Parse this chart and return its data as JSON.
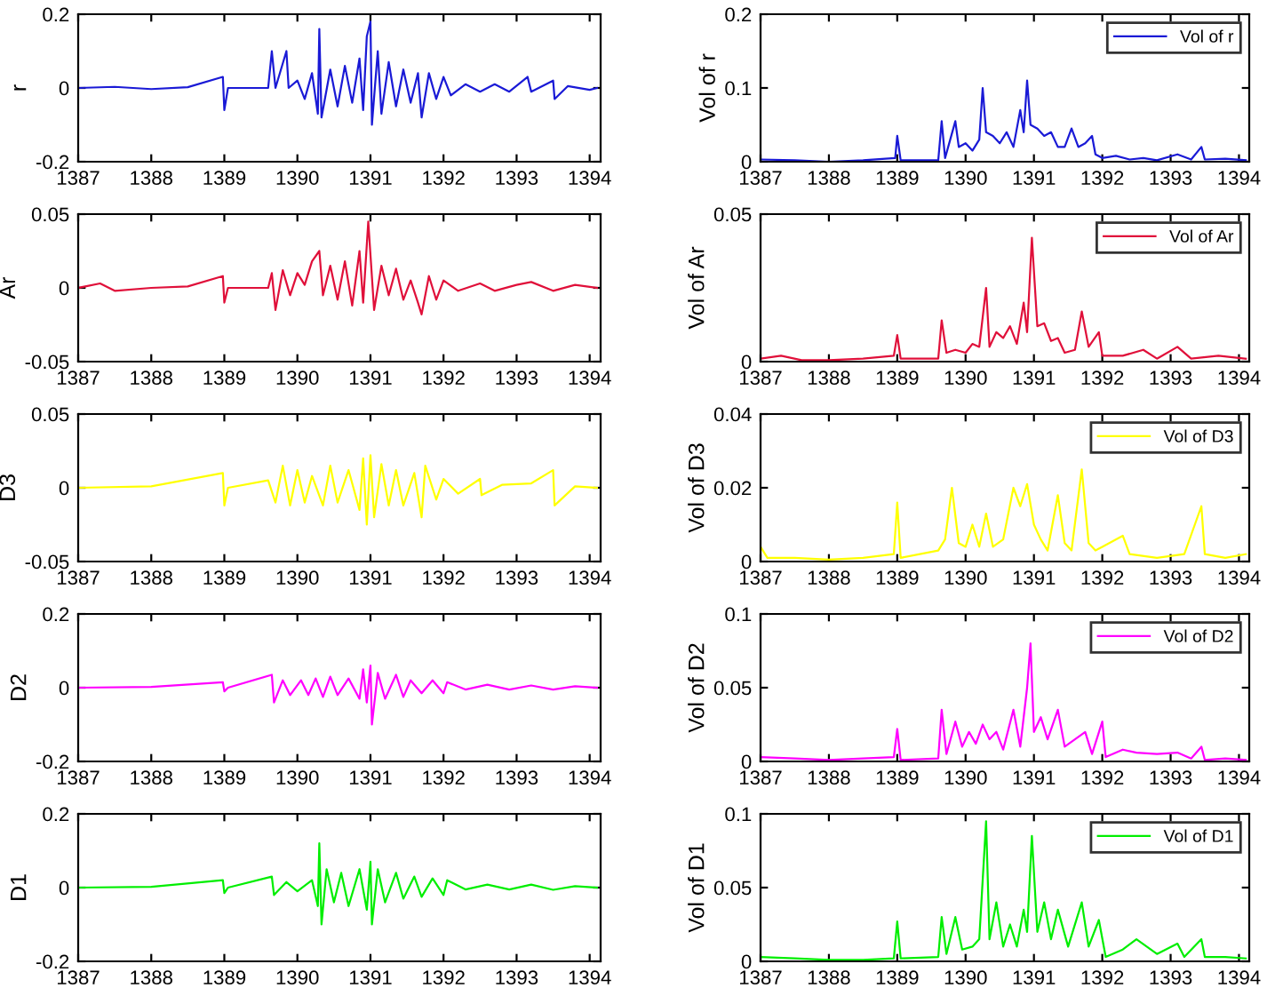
{
  "chart_data": [
    {
      "type": "line",
      "ylabel": "r",
      "xlim": [
        1387,
        1394.15
      ],
      "xticks": [
        1387,
        1388,
        1389,
        1390,
        1391,
        1392,
        1393,
        1394
      ],
      "ylim": [
        -0.2,
        0.2
      ],
      "yticks": [
        -0.2,
        0,
        0.2
      ],
      "x": [
        1387.0,
        1387.5,
        1388.0,
        1388.5,
        1388.98,
        1389.0,
        1389.05,
        1389.6,
        1389.65,
        1389.7,
        1389.85,
        1389.88,
        1390.0,
        1390.1,
        1390.2,
        1390.28,
        1390.3,
        1390.33,
        1390.45,
        1390.55,
        1390.65,
        1390.75,
        1390.85,
        1390.9,
        1390.95,
        1391.0,
        1391.02,
        1391.1,
        1391.15,
        1391.25,
        1391.35,
        1391.45,
        1391.55,
        1391.65,
        1391.7,
        1391.8,
        1391.9,
        1392.0,
        1392.1,
        1392.3,
        1392.5,
        1392.7,
        1392.9,
        1393.15,
        1393.2,
        1393.5,
        1393.52,
        1393.7,
        1394.0,
        1394.1
      ],
      "series": [
        {
          "color": "#1a1ad6",
          "values": [
            0,
            0.003,
            -0.003,
            0.002,
            0.03,
            -0.06,
            0,
            0,
            0.1,
            0,
            0.1,
            0,
            0.02,
            -0.03,
            0.04,
            -0.07,
            0.16,
            -0.08,
            0.05,
            -0.05,
            0.06,
            -0.04,
            0.08,
            -0.06,
            0.14,
            0.18,
            -0.1,
            0.1,
            -0.07,
            0.07,
            -0.05,
            0.05,
            -0.04,
            0.04,
            -0.08,
            0.04,
            -0.03,
            0.03,
            -0.02,
            0.01,
            -0.01,
            0.01,
            -0.01,
            0.03,
            -0.01,
            0.02,
            -0.03,
            0.005,
            -0.005,
            0
          ]
        }
      ]
    },
    {
      "type": "line",
      "ylabel": "Vol of r",
      "xlim": [
        1387,
        1394.15
      ],
      "xticks": [
        1387,
        1388,
        1389,
        1390,
        1391,
        1392,
        1393,
        1394
      ],
      "ylim": [
        0,
        0.2
      ],
      "yticks": [
        0,
        0.1,
        0.2
      ],
      "legend": "top right",
      "x": [
        1387.0,
        1387.5,
        1388.0,
        1388.5,
        1388.97,
        1389.0,
        1389.05,
        1389.6,
        1389.65,
        1389.7,
        1389.85,
        1389.9,
        1390.0,
        1390.1,
        1390.2,
        1390.25,
        1390.3,
        1390.4,
        1390.5,
        1390.6,
        1390.7,
        1390.8,
        1390.85,
        1390.9,
        1390.95,
        1391.05,
        1391.15,
        1391.25,
        1391.35,
        1391.45,
        1391.55,
        1391.65,
        1391.75,
        1391.85,
        1391.9,
        1392.0,
        1392.2,
        1392.4,
        1392.6,
        1392.8,
        1393.1,
        1393.3,
        1393.45,
        1393.5,
        1393.8,
        1394.1
      ],
      "series": [
        {
          "name": "Vol of r",
          "color": "#1a1ad6",
          "values": [
            0.003,
            0.002,
            0,
            0.002,
            0.005,
            0.035,
            0.002,
            0.002,
            0.055,
            0.005,
            0.055,
            0.02,
            0.025,
            0.015,
            0.03,
            0.1,
            0.04,
            0.035,
            0.025,
            0.04,
            0.02,
            0.07,
            0.04,
            0.11,
            0.05,
            0.045,
            0.035,
            0.04,
            0.02,
            0.02,
            0.045,
            0.02,
            0.025,
            0.035,
            0.01,
            0.005,
            0.008,
            0.003,
            0.005,
            0.002,
            0.01,
            0.003,
            0.02,
            0.003,
            0.004,
            0.002
          ]
        }
      ]
    },
    {
      "type": "line",
      "ylabel": "Ar",
      "xlim": [
        1387,
        1394.15
      ],
      "xticks": [
        1387,
        1388,
        1389,
        1390,
        1391,
        1392,
        1393,
        1394
      ],
      "ylim": [
        -0.05,
        0.05
      ],
      "yticks": [
        -0.05,
        0,
        0.05
      ],
      "x": [
        1387.0,
        1387.3,
        1387.5,
        1388.0,
        1388.5,
        1388.98,
        1389.0,
        1389.05,
        1389.6,
        1389.65,
        1389.7,
        1389.8,
        1389.9,
        1390.0,
        1390.1,
        1390.2,
        1390.3,
        1390.35,
        1390.45,
        1390.55,
        1390.65,
        1390.75,
        1390.85,
        1390.9,
        1390.97,
        1391.05,
        1391.15,
        1391.25,
        1391.35,
        1391.45,
        1391.55,
        1391.65,
        1391.7,
        1391.8,
        1391.9,
        1392.0,
        1392.2,
        1392.5,
        1392.7,
        1393.0,
        1393.2,
        1393.5,
        1393.8,
        1394.1
      ],
      "series": [
        {
          "color": "#e0103a",
          "values": [
            0,
            0.003,
            -0.002,
            0,
            0.001,
            0.008,
            -0.01,
            0,
            0,
            0.01,
            -0.015,
            0.012,
            -0.005,
            0.01,
            0.002,
            0.018,
            0.025,
            -0.005,
            0.015,
            -0.008,
            0.018,
            -0.012,
            0.025,
            -0.01,
            0.045,
            -0.015,
            0.015,
            -0.005,
            0.013,
            -0.008,
            0.005,
            -0.01,
            -0.018,
            0.008,
            -0.008,
            0.005,
            -0.002,
            0.003,
            -0.002,
            0.002,
            0.004,
            -0.002,
            0.002,
            0
          ]
        }
      ]
    },
    {
      "type": "line",
      "ylabel": "Vol of Ar",
      "xlim": [
        1387,
        1394.15
      ],
      "xticks": [
        1387,
        1388,
        1389,
        1390,
        1391,
        1392,
        1393,
        1394
      ],
      "ylim": [
        0,
        0.05
      ],
      "yticks": [
        0,
        0.05
      ],
      "legend": "top right",
      "x": [
        1387.0,
        1387.3,
        1387.6,
        1388.0,
        1388.5,
        1388.95,
        1389.0,
        1389.05,
        1389.6,
        1389.65,
        1389.72,
        1389.85,
        1390.0,
        1390.1,
        1390.2,
        1390.3,
        1390.35,
        1390.45,
        1390.55,
        1390.65,
        1390.75,
        1390.85,
        1390.9,
        1390.97,
        1391.05,
        1391.15,
        1391.25,
        1391.35,
        1391.45,
        1391.6,
        1391.7,
        1391.8,
        1391.95,
        1392.0,
        1392.3,
        1392.6,
        1392.8,
        1393.1,
        1393.3,
        1393.7,
        1394.1
      ],
      "series": [
        {
          "name": "Vol of Ar",
          "color": "#e0103a",
          "values": [
            0.001,
            0.002,
            0.0005,
            0.0005,
            0.001,
            0.002,
            0.009,
            0.001,
            0.001,
            0.014,
            0.003,
            0.004,
            0.003,
            0.006,
            0.005,
            0.025,
            0.005,
            0.01,
            0.008,
            0.012,
            0.006,
            0.02,
            0.01,
            0.042,
            0.012,
            0.013,
            0.007,
            0.008,
            0.003,
            0.004,
            0.017,
            0.005,
            0.01,
            0.002,
            0.002,
            0.004,
            0.001,
            0.005,
            0.001,
            0.002,
            0.001
          ]
        }
      ]
    },
    {
      "type": "line",
      "ylabel": "D3",
      "xlim": [
        1387,
        1394.15
      ],
      "xticks": [
        1387,
        1388,
        1389,
        1390,
        1391,
        1392,
        1393,
        1394
      ],
      "ylim": [
        -0.05,
        0.05
      ],
      "yticks": [
        -0.05,
        0,
        0.05
      ],
      "x": [
        1387.0,
        1388.0,
        1388.98,
        1389.0,
        1389.05,
        1389.6,
        1389.7,
        1389.8,
        1389.9,
        1390.0,
        1390.1,
        1390.2,
        1390.35,
        1390.45,
        1390.55,
        1390.7,
        1390.85,
        1390.9,
        1390.95,
        1391.0,
        1391.05,
        1391.15,
        1391.25,
        1391.35,
        1391.45,
        1391.6,
        1391.7,
        1391.75,
        1391.9,
        1392.0,
        1392.2,
        1392.5,
        1392.52,
        1392.8,
        1393.2,
        1393.5,
        1393.52,
        1393.8,
        1394.1
      ],
      "series": [
        {
          "color": "#ffff00",
          "values": [
            0,
            0.001,
            0.01,
            -0.012,
            0,
            0.005,
            -0.01,
            0.015,
            -0.012,
            0.012,
            -0.01,
            0.008,
            -0.012,
            0.015,
            -0.01,
            0.012,
            -0.015,
            0.02,
            -0.025,
            0.022,
            -0.02,
            0.016,
            -0.012,
            0.012,
            -0.012,
            0.01,
            -0.02,
            0.015,
            -0.008,
            0.006,
            -0.004,
            0.006,
            -0.005,
            0.002,
            0.003,
            0.012,
            -0.012,
            0.001,
            0
          ]
        }
      ]
    },
    {
      "type": "line",
      "ylabel": "Vol of D3",
      "xlim": [
        1387,
        1394.15
      ],
      "xticks": [
        1387,
        1388,
        1389,
        1390,
        1391,
        1392,
        1393,
        1394
      ],
      "ylim": [
        0,
        0.04
      ],
      "yticks": [
        0,
        0.02,
        0.04
      ],
      "legend": "top right",
      "x": [
        1387.0,
        1387.1,
        1387.5,
        1388.0,
        1388.5,
        1388.95,
        1389.0,
        1389.05,
        1389.6,
        1389.7,
        1389.8,
        1389.9,
        1390.0,
        1390.1,
        1390.2,
        1390.3,
        1390.4,
        1390.55,
        1390.7,
        1390.8,
        1390.9,
        1391.0,
        1391.1,
        1391.2,
        1391.35,
        1391.45,
        1391.55,
        1391.7,
        1391.8,
        1391.9,
        1392.0,
        1392.3,
        1392.4,
        1392.8,
        1393.2,
        1393.45,
        1393.5,
        1393.8,
        1394.1
      ],
      "series": [
        {
          "name": "Vol of D3",
          "color": "#ffff00",
          "values": [
            0.004,
            0.001,
            0.001,
            0.0005,
            0.001,
            0.002,
            0.016,
            0.001,
            0.003,
            0.006,
            0.02,
            0.005,
            0.004,
            0.01,
            0.004,
            0.013,
            0.004,
            0.006,
            0.02,
            0.015,
            0.021,
            0.01,
            0.006,
            0.003,
            0.018,
            0.005,
            0.003,
            0.025,
            0.005,
            0.003,
            0.004,
            0.007,
            0.002,
            0.001,
            0.002,
            0.015,
            0.002,
            0.001,
            0.002
          ]
        }
      ]
    },
    {
      "type": "line",
      "ylabel": "D2",
      "xlim": [
        1387,
        1394.15
      ],
      "xticks": [
        1387,
        1388,
        1389,
        1390,
        1391,
        1392,
        1393,
        1394
      ],
      "ylim": [
        -0.2,
        0.2
      ],
      "yticks": [
        -0.2,
        0,
        0.2
      ],
      "x": [
        1387.0,
        1388.0,
        1388.98,
        1389.0,
        1389.05,
        1389.65,
        1389.68,
        1389.8,
        1389.9,
        1390.05,
        1390.15,
        1390.25,
        1390.35,
        1390.45,
        1390.55,
        1390.7,
        1390.85,
        1390.9,
        1390.95,
        1391.0,
        1391.02,
        1391.1,
        1391.2,
        1391.35,
        1391.45,
        1391.55,
        1391.7,
        1391.85,
        1392.0,
        1392.05,
        1392.3,
        1392.6,
        1392.9,
        1393.2,
        1393.5,
        1393.8,
        1394.1
      ],
      "series": [
        {
          "color": "#ff00ff",
          "values": [
            0,
            0.002,
            0.015,
            -0.01,
            0,
            0.035,
            -0.04,
            0.02,
            -0.02,
            0.02,
            -0.02,
            0.025,
            -0.025,
            0.03,
            -0.02,
            0.025,
            -0.03,
            0.05,
            -0.04,
            0.06,
            -0.1,
            0.04,
            -0.03,
            0.035,
            -0.025,
            0.02,
            -0.015,
            0.02,
            -0.015,
            0.015,
            -0.005,
            0.008,
            -0.005,
            0.006,
            -0.005,
            0.004,
            0
          ]
        }
      ]
    },
    {
      "type": "line",
      "ylabel": "Vol of D2",
      "xlim": [
        1387,
        1394.15
      ],
      "xticks": [
        1387,
        1388,
        1389,
        1390,
        1391,
        1392,
        1393,
        1394
      ],
      "ylim": [
        0,
        0.1
      ],
      "yticks": [
        0,
        0.05,
        0.1
      ],
      "legend": "top right",
      "x": [
        1387.0,
        1387.5,
        1388.0,
        1388.5,
        1388.95,
        1389.0,
        1389.05,
        1389.6,
        1389.65,
        1389.72,
        1389.85,
        1389.95,
        1390.05,
        1390.15,
        1390.25,
        1390.35,
        1390.45,
        1390.55,
        1390.7,
        1390.8,
        1390.9,
        1390.95,
        1391.0,
        1391.1,
        1391.2,
        1391.35,
        1391.45,
        1391.6,
        1391.75,
        1391.85,
        1392.0,
        1392.05,
        1392.3,
        1392.5,
        1392.8,
        1393.1,
        1393.3,
        1393.45,
        1393.5,
        1393.8,
        1394.1
      ],
      "series": [
        {
          "name": "Vol of D2",
          "color": "#ff00ff",
          "values": [
            0.003,
            0.002,
            0.001,
            0.002,
            0.003,
            0.022,
            0.001,
            0.002,
            0.035,
            0.005,
            0.027,
            0.01,
            0.02,
            0.012,
            0.025,
            0.015,
            0.02,
            0.008,
            0.035,
            0.01,
            0.05,
            0.08,
            0.02,
            0.03,
            0.015,
            0.035,
            0.01,
            0.015,
            0.02,
            0.005,
            0.027,
            0.003,
            0.008,
            0.006,
            0.005,
            0.006,
            0.002,
            0.01,
            0.001,
            0.002,
            0.001
          ]
        }
      ]
    },
    {
      "type": "line",
      "ylabel": "D1",
      "xlim": [
        1387,
        1394.15
      ],
      "xticks": [
        1387,
        1388,
        1389,
        1390,
        1391,
        1392,
        1393,
        1394
      ],
      "ylim": [
        -0.2,
        0.2
      ],
      "yticks": [
        -0.2,
        0,
        0.2
      ],
      "x": [
        1387.0,
        1388.0,
        1388.98,
        1389.0,
        1389.05,
        1389.65,
        1389.68,
        1389.85,
        1390.0,
        1390.2,
        1390.28,
        1390.3,
        1390.33,
        1390.4,
        1390.5,
        1390.6,
        1390.7,
        1390.85,
        1390.95,
        1391.0,
        1391.02,
        1391.1,
        1391.2,
        1391.35,
        1391.45,
        1391.6,
        1391.7,
        1391.85,
        1392.0,
        1392.05,
        1392.3,
        1392.6,
        1392.9,
        1393.2,
        1393.5,
        1393.8,
        1394.1
      ],
      "series": [
        {
          "color": "#00ee00",
          "values": [
            0,
            0.002,
            0.02,
            -0.015,
            0,
            0.03,
            -0.02,
            0.015,
            -0.01,
            0.02,
            -0.05,
            0.12,
            -0.1,
            0.05,
            -0.04,
            0.04,
            -0.05,
            0.05,
            -0.06,
            0.07,
            -0.1,
            0.05,
            -0.04,
            0.04,
            -0.03,
            0.03,
            -0.025,
            0.025,
            -0.02,
            0.02,
            -0.005,
            0.008,
            -0.005,
            0.008,
            -0.006,
            0.004,
            0
          ]
        }
      ]
    },
    {
      "type": "line",
      "ylabel": "Vol of D1",
      "xlim": [
        1387,
        1394.15
      ],
      "xticks": [
        1387,
        1388,
        1389,
        1390,
        1391,
        1392,
        1393,
        1394
      ],
      "ylim": [
        0,
        0.1
      ],
      "yticks": [
        0,
        0.05,
        0.1
      ],
      "legend": "top right",
      "x": [
        1387.0,
        1387.5,
        1388.0,
        1388.5,
        1388.95,
        1389.0,
        1389.05,
        1389.6,
        1389.65,
        1389.72,
        1389.85,
        1389.95,
        1390.1,
        1390.2,
        1390.3,
        1390.35,
        1390.45,
        1390.55,
        1390.65,
        1390.75,
        1390.85,
        1390.9,
        1390.97,
        1391.05,
        1391.15,
        1391.25,
        1391.35,
        1391.5,
        1391.7,
        1391.8,
        1391.95,
        1392.05,
        1392.3,
        1392.5,
        1392.8,
        1393.1,
        1393.2,
        1393.45,
        1393.5,
        1393.8,
        1394.1
      ],
      "series": [
        {
          "name": "Vol of D1",
          "color": "#00ee00",
          "values": [
            0.003,
            0.002,
            0.001,
            0.001,
            0.002,
            0.027,
            0.002,
            0.003,
            0.03,
            0.005,
            0.03,
            0.008,
            0.01,
            0.015,
            0.095,
            0.015,
            0.04,
            0.01,
            0.025,
            0.01,
            0.035,
            0.02,
            0.085,
            0.02,
            0.04,
            0.015,
            0.035,
            0.01,
            0.04,
            0.01,
            0.028,
            0.003,
            0.008,
            0.015,
            0.005,
            0.012,
            0.003,
            0.015,
            0.003,
            0.003,
            0.002
          ]
        }
      ]
    }
  ]
}
